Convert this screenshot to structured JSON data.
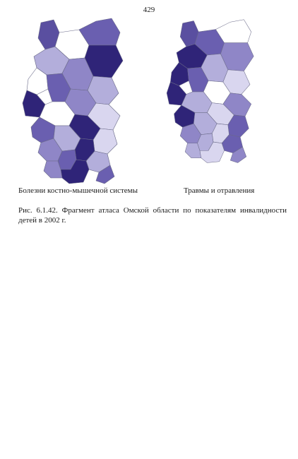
{
  "page_number": "429",
  "maps": [
    {
      "caption": "Болезни костно-мышечной системы",
      "shades": [
        "#5a4fa0",
        "#ffffff",
        "#6a5fb0",
        "#2f2478",
        "#b3aedb",
        "#8f86c7",
        "#ffffff",
        "#6a5fb0",
        "#b3aedb",
        "#2f2478",
        "#8f86c7",
        "#ffffff",
        "#d9d6ef",
        "#6a5fb0",
        "#2f2478",
        "#b3aedb",
        "#d9d6ef",
        "#8f86c7",
        "#2f2478",
        "#6a5fb0",
        "#b3aedb",
        "#2f2478",
        "#8f86c7",
        "#6a5fb0"
      ]
    },
    {
      "caption": "Травмы  и отравления",
      "shades": [
        "#5a4fa0",
        "#6a5fb0",
        "#ffffff",
        "#8f86c7",
        "#2f2478",
        "#b3aedb",
        "#2f2478",
        "#6a5fb0",
        "#d9d6ef",
        "#2f2478",
        "#ffffff",
        "#b3aedb",
        "#8f86c7",
        "#2f2478",
        "#d9d6ef",
        "#b3aedb",
        "#6a5fb0",
        "#8f86c7",
        "#d9d6ef",
        "#b3aedb",
        "#6a5fb0",
        "#d9d6ef",
        "#b3aedb",
        "#8f86c7"
      ]
    }
  ],
  "figure_caption": "Рис. 6.1.42. Фрагмент атласа Омской области по показателям инвалидности детей в 2002 г."
}
